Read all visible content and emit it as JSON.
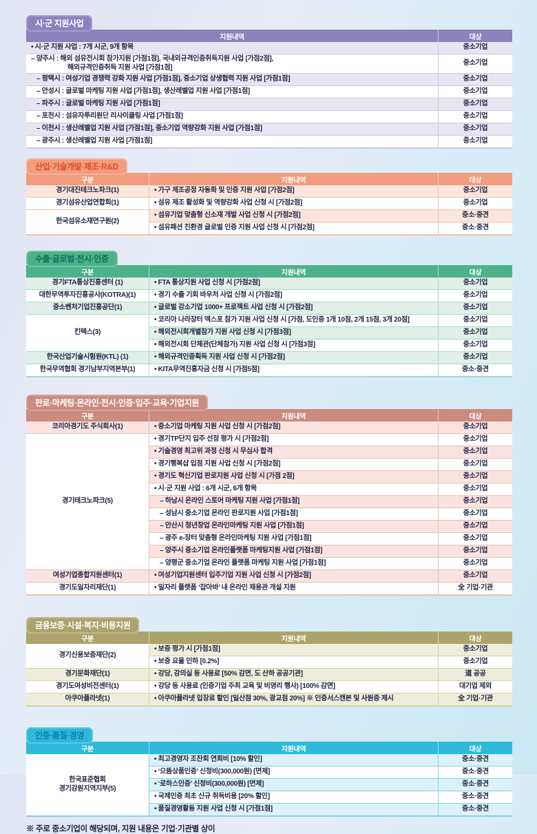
{
  "columns": {
    "category": "구분",
    "detail": "지원내역",
    "target": "대상"
  },
  "footer_note": "※ 주로 중소기업이 해당되며, 지원 내용은 기업·기관별 상이",
  "sections": [
    {
      "id": "si-gun-support",
      "title": "시·군 지원사업",
      "has_category_column": false,
      "colors": {
        "main": "#8C82BE",
        "tab_text": "#FFFFFF",
        "row_tint": "#E8E5F3",
        "line": "#CCC7E4"
      },
      "rows": [
        {
          "detail": "• 시·군 지원 사업 : 7개 시군, 9개 항목",
          "target": "중소기업"
        },
        {
          "detail": "– 양주시 : 해외 섬유전시회 참가지원 [가점1점], 국내외규격인증취득지원 사업 [가점2점],\n해외규격인증취득 지원 사업 [가점1점]",
          "target": "중소기업",
          "indent": true,
          "hang": true
        },
        {
          "detail": "– 평택시 : 여성기업 경쟁력 강화 지원 사업 [가점1점], 중소기업 상생협력 지원 사업 [가점1점]",
          "target": "중소기업",
          "indent": true
        },
        {
          "detail": "– 안성시 : 글로벌 마케팅 지원 사업 [가점1점], 생산레벨업 지원 사업 [가점1점]",
          "target": "중소기업",
          "indent": true
        },
        {
          "detail": "– 파주시 : 글로벌 마케팅 지원 사업 [가점1점]",
          "target": "중소기업",
          "indent": true
        },
        {
          "detail": "– 포천시 : 섬유자투리원단 리사이클링 사업 [가점1점]",
          "target": "중소기업",
          "indent": true
        },
        {
          "detail": "– 이천시 : 생산레벨업 지원 사업 [가점1점], 중소기업 역량강화 지원 사업 [가점1점]",
          "target": "중소기업",
          "indent": true
        },
        {
          "detail": "– 광주시 : 생산레벨업 지원 사업 [가점1점]",
          "target": "중소기업",
          "indent": true
        }
      ]
    },
    {
      "id": "industry-rnd",
      "title": "산업·기술개발·제조·R&D",
      "has_category_column": true,
      "colors": {
        "main": "#F19C7D",
        "tab_text": "#DE4F28",
        "row_tint": "#FBE5DC",
        "line": "#F3C2AD"
      },
      "rows": [
        {
          "category": "경기대진테크노파크(1)",
          "detail": "• 가구 제조공정 자동화 및 인증 지원 사업 [가점2점]",
          "target": "중소기업"
        },
        {
          "category": "경기섬유산업연합회(1)",
          "detail": "• 섬유 제조 활성화 및 역량강화 사업 신청 시 [가점2점]",
          "target": "중소기업"
        },
        {
          "category": "한국섬유소재연구원(2)",
          "category_rowspan": 2,
          "detail": "• 섬유기업 맞춤형 신소재 개발 사업 신청 시 [가점2점]",
          "target": "중소·중견"
        },
        {
          "detail": "• 섬유패션 친환경 글로벌 인증 지원 사업 신청 시 [가점2점]",
          "target": "중소·중견"
        }
      ]
    },
    {
      "id": "export-global",
      "title": "수출·글로벌·전시·인증",
      "has_category_column": true,
      "colors": {
        "main": "#4DB18B",
        "tab_text": "#0E6F56",
        "row_tint": "#E1F0E9",
        "line": "#A5DAC5"
      },
      "rows": [
        {
          "category": "경기FTA통상진흥센터 (1)",
          "detail": "• FTA 통상지원 사업 신청 시 [가점2점]",
          "target": "중소기업"
        },
        {
          "category": "대한무역투자진흥공사(KOTRA)(1)",
          "detail": "• 경기 수출 기회 바우처 사업 신청 시 [가점2점]",
          "target": "중소기업"
        },
        {
          "category": "중소벤처기업진흥공단(1)",
          "detail": "• 글로벌 강소기업 1000+ 프로젝트 사업 신청 시 [가점2점]",
          "target": "중소기업"
        },
        {
          "category": "킨텍스(3)",
          "category_rowspan": 3,
          "detail": "• 코리아 나라장터 엑스포 참가 지원 사업 신청 시 [가점, 도인증 1개 10점, 2개 15점, 3개 20점]",
          "target": "중소기업"
        },
        {
          "detail": "• 해외전시회개별참가 지원 사업 신청 시 [가점3점]",
          "target": "중소기업"
        },
        {
          "detail": "• 해외전시회 단체관(단체참가) 지원 사업 신청 시 [가점3점]",
          "target": "중소기업"
        },
        {
          "category": "한국산업기술시험원(KTL) (1)",
          "detail": "• 해외규격인증획득 지원 사업 신청 시 [가점2점]",
          "target": "중소기업"
        },
        {
          "category": "한국무역협회 경기남부지역본부(1)",
          "detail": "• KITA무역진흥자금 신청 시 [가점5점]",
          "target": "중소·중견"
        }
      ]
    },
    {
      "id": "marketing-online",
      "title": "판로·마케팅·온라인·전시·인증·입주·교육·기업지원",
      "has_category_column": true,
      "colors": {
        "main": "#CB8B7E",
        "tab_text": "#FFFFFF",
        "row_tint": "#FAE3E1",
        "line": "#E5C0B8"
      },
      "rows": [
        {
          "category": "코리아경기도 주식회사(1)",
          "detail": "• 중소기업 마케팅 지원 사업 신청 시 [가점2점]",
          "target": "중소기업"
        },
        {
          "category": "경기테크노파크(5)",
          "category_rowspan": 11,
          "detail": "• 경기TP단지 입주 선정 평가 시 [가점2점]",
          "target": "중소기업"
        },
        {
          "detail": "• 기술경영 최고위 과정 신청 시 무심사 합격",
          "target": "중소기업"
        },
        {
          "detail": "• 경기행복샵 입점 지원 사업 신청 시 [가점2점]",
          "target": "중소기업"
        },
        {
          "detail": "• 경기도 혁신기업 판로지원 사업 신청 시 [가점 2점]",
          "target": "중소기업"
        },
        {
          "detail": "• 시·군 지원 사업 : 6개 시군, 6개 항목",
          "target": "중소기업"
        },
        {
          "detail": "– 하남시 온라인 스토어 마케팅 지원 사업 [가점1점]",
          "target": "중소기업",
          "indent": true
        },
        {
          "detail": "– 성남시 중소기업 온라인 판로지원 사업 [가점1점]",
          "target": "중소기업",
          "indent": true
        },
        {
          "detail": "– 안산시 청년창업 온라인마케팅 지원 사업 [가점1점]",
          "target": "중소기업",
          "indent": true
        },
        {
          "detail": "– 광주 e-장터 맞춤형 온라인마케팅 지원 사업 [가점1점]",
          "target": "중소기업",
          "indent": true
        },
        {
          "detail": "– 양주시 중소기업 온라인플랫폼 마케팅지원 사업 [가점1점]",
          "target": "중소기업",
          "indent": true
        },
        {
          "detail": "– 양평군 중소기업 온라인 플랫폼 마케팅 지원 사업 [가점1점]",
          "target": "중소기업",
          "indent": true
        },
        {
          "category": "여성기업종합지원센터(1)",
          "detail": "• 여성기업지원센터 입주기업 지원 사업 신청 시 [가점2점]",
          "target": "중소기업"
        },
        {
          "category": "경기도일자리재단(1)",
          "detail": "• 일자리 플랫폼 ‘잡아바’ 내 온라인 채용관 개설 지원",
          "target": "全 기업·기관"
        }
      ]
    },
    {
      "id": "finance-welfare",
      "title": "금융보증·시설·복지·비용지원",
      "has_category_column": true,
      "colors": {
        "main": "#ACA36C",
        "tab_text": "#FFFFFF",
        "row_tint": "#EFEDDB",
        "line": "#D6D1A9"
      },
      "rows": [
        {
          "category": "경기신용보증재단(2)",
          "category_rowspan": 2,
          "detail": "• 보증 평가 시 [가점1점]",
          "target": "중소기업"
        },
        {
          "detail": "• 보증 요율 인하 [0.2%]",
          "target": "중소기업"
        },
        {
          "category": "경기문화재단(1)",
          "detail": "• 강당, 강의실 등 사용료 [50% 감면, 도 산하 공공기관]",
          "target": "道 공공"
        },
        {
          "category": "경기도여성비전센터(1)",
          "detail": "• 강당 등 사용료 (인증기업 주최 교육 및 비영리 행사) [100% 감면]",
          "target": "대기업 제외"
        },
        {
          "category": "아쿠아플라넷(1)",
          "detail": "• 아쿠아플라넷 입장료 할인 [일산점 30%, 광교점 20%] ※ 인증서스캔본 및 사원증 제시",
          "target": "全 기업·기관"
        }
      ]
    },
    {
      "id": "cert-quality",
      "title": "인증·품질·경영",
      "has_category_column": true,
      "colors": {
        "main": "#2EB9DA",
        "tab_text": "#0A7CAB",
        "row_tint": "#DCF2F9",
        "line": "#7FD2E8"
      },
      "rows": [
        {
          "category": "한국표준협회\n경기강원지역지부(5)",
          "category_rowspan": 5,
          "detail": "• 최고경영자 조찬회 연회비 [10% 할인]",
          "target": "중소·중견"
        },
        {
          "detail": "• ‘으뜸상품인증’ 신청비(300,000원) [면제]",
          "target": "중소·중견"
        },
        {
          "detail": "• ‘로하스인증’ 신청비(300,000원) [면제]",
          "target": "중소·중견"
        },
        {
          "detail": "• 국제인증 최초 신규 취득비용 [20% 할인]",
          "target": "중소·중견"
        },
        {
          "detail": "• 품질경영활동 지원 사업 신청 시 [가점1점]",
          "target": "중소·중견"
        }
      ]
    }
  ]
}
